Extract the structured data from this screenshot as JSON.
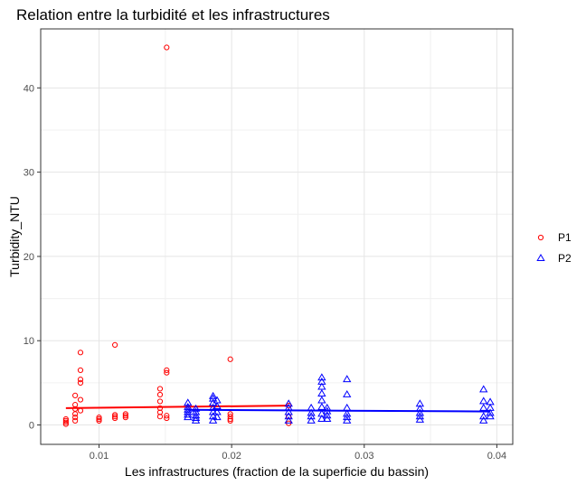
{
  "chart_data": {
    "type": "scatter",
    "title": "Relation entre la turbidité et les infrastructures",
    "xlabel": "Les infrastructures (fraction de la superficie du bassin)",
    "ylabel": "Turbidity_NTU",
    "xlim": [
      0.0056,
      0.0412
    ],
    "ylim": [
      -2.3,
      47
    ],
    "xticks": [
      0.01,
      0.02,
      0.03,
      0.04
    ],
    "xtick_labels": [
      "0.01",
      "0.02",
      "0.03",
      "0.04"
    ],
    "yticks": [
      0,
      10,
      20,
      30,
      40
    ],
    "ytick_labels": [
      "0",
      "10",
      "20",
      "30",
      "40"
    ],
    "grid": true,
    "legend_position": "right",
    "series": [
      {
        "name": "P1",
        "marker": "circle",
        "color": "#ff0000",
        "points": [
          [
            0.0075,
            0.1
          ],
          [
            0.0075,
            0.3
          ],
          [
            0.0075,
            0.5
          ],
          [
            0.0075,
            0.7
          ],
          [
            0.0082,
            0.5
          ],
          [
            0.0082,
            0.9
          ],
          [
            0.0082,
            1.3
          ],
          [
            0.0082,
            1.9
          ],
          [
            0.0082,
            2.4
          ],
          [
            0.0082,
            3.5
          ],
          [
            0.0086,
            1.7
          ],
          [
            0.0086,
            3.0
          ],
          [
            0.0086,
            5.0
          ],
          [
            0.0086,
            5.4
          ],
          [
            0.0086,
            6.5
          ],
          [
            0.0086,
            8.6
          ],
          [
            0.01,
            0.5
          ],
          [
            0.01,
            0.7
          ],
          [
            0.01,
            0.9
          ],
          [
            0.0112,
            0.8
          ],
          [
            0.0112,
            1.0
          ],
          [
            0.0112,
            1.2
          ],
          [
            0.0112,
            9.5
          ],
          [
            0.012,
            0.9
          ],
          [
            0.012,
            1.1
          ],
          [
            0.012,
            1.3
          ],
          [
            0.0146,
            1.0
          ],
          [
            0.0146,
            1.5
          ],
          [
            0.0146,
            2.0
          ],
          [
            0.0146,
            2.8
          ],
          [
            0.0146,
            3.6
          ],
          [
            0.0146,
            4.3
          ],
          [
            0.0151,
            0.8
          ],
          [
            0.0151,
            1.1
          ],
          [
            0.0151,
            6.2
          ],
          [
            0.0151,
            6.5
          ],
          [
            0.0151,
            44.8
          ],
          [
            0.0199,
            0.5
          ],
          [
            0.0199,
            0.7
          ],
          [
            0.0199,
            1.0
          ],
          [
            0.0199,
            1.3
          ],
          [
            0.0199,
            7.8
          ],
          [
            0.0243,
            0.2
          ],
          [
            0.0243,
            1.0
          ],
          [
            0.0243,
            2.3
          ]
        ],
        "trend": [
          [
            0.0075,
            2.0
          ],
          [
            0.0243,
            2.3
          ]
        ]
      },
      {
        "name": "P2",
        "marker": "triangle",
        "color": "#0000ff",
        "points": [
          [
            0.0167,
            0.9
          ],
          [
            0.0167,
            1.2
          ],
          [
            0.0167,
            1.5
          ],
          [
            0.0167,
            1.8
          ],
          [
            0.0167,
            2.1
          ],
          [
            0.0167,
            2.6
          ],
          [
            0.0173,
            0.5
          ],
          [
            0.0173,
            0.8
          ],
          [
            0.0173,
            1.1
          ],
          [
            0.0173,
            1.5
          ],
          [
            0.0173,
            1.9
          ],
          [
            0.0186,
            0.5
          ],
          [
            0.0186,
            1.0
          ],
          [
            0.0186,
            1.5
          ],
          [
            0.0186,
            2.0
          ],
          [
            0.0186,
            2.6
          ],
          [
            0.0186,
            3.1
          ],
          [
            0.0186,
            3.4
          ],
          [
            0.0189,
            0.9
          ],
          [
            0.0189,
            1.5
          ],
          [
            0.0189,
            2.2
          ],
          [
            0.0189,
            2.9
          ],
          [
            0.0243,
            0.5
          ],
          [
            0.0243,
            1.0
          ],
          [
            0.0243,
            1.5
          ],
          [
            0.0243,
            2.0
          ],
          [
            0.0243,
            2.5
          ],
          [
            0.026,
            0.5
          ],
          [
            0.026,
            1.0
          ],
          [
            0.026,
            1.4
          ],
          [
            0.026,
            2.0
          ],
          [
            0.0268,
            0.7
          ],
          [
            0.0268,
            1.3
          ],
          [
            0.0268,
            2.1
          ],
          [
            0.0268,
            2.9
          ],
          [
            0.0268,
            3.7
          ],
          [
            0.0268,
            4.5
          ],
          [
            0.0268,
            5.1
          ],
          [
            0.0268,
            5.6
          ],
          [
            0.0272,
            0.7
          ],
          [
            0.0272,
            1.1
          ],
          [
            0.0272,
            1.6
          ],
          [
            0.0272,
            2.0
          ],
          [
            0.0287,
            0.5
          ],
          [
            0.0287,
            0.9
          ],
          [
            0.0287,
            1.3
          ],
          [
            0.0287,
            2.0
          ],
          [
            0.0287,
            3.6
          ],
          [
            0.0287,
            5.4
          ],
          [
            0.0342,
            0.6
          ],
          [
            0.0342,
            1.0
          ],
          [
            0.0342,
            1.4
          ],
          [
            0.0342,
            1.9
          ],
          [
            0.0342,
            2.5
          ],
          [
            0.039,
            0.5
          ],
          [
            0.039,
            1.0
          ],
          [
            0.039,
            2.0
          ],
          [
            0.039,
            2.8
          ],
          [
            0.039,
            4.2
          ],
          [
            0.0395,
            1.0
          ],
          [
            0.0395,
            1.4
          ],
          [
            0.0395,
            2.0
          ],
          [
            0.0395,
            2.7
          ]
        ],
        "trend": [
          [
            0.0167,
            1.8
          ],
          [
            0.0395,
            1.6
          ]
        ]
      }
    ]
  }
}
